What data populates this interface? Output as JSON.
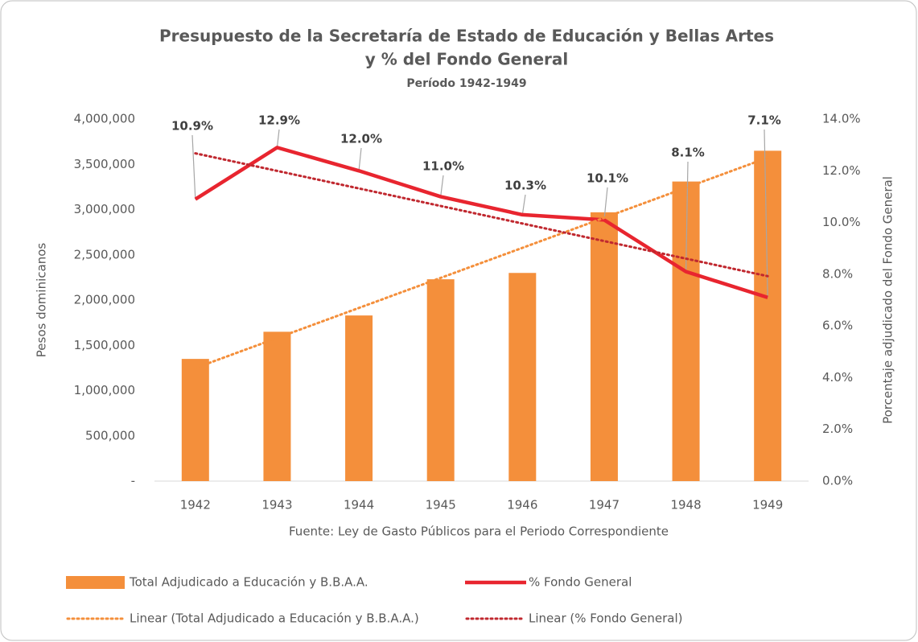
{
  "chart_data": {
    "type": "bar-line",
    "title": "Presupuesto de la Secretaría de Estado de Educación  y Bellas Artes",
    "subtitle": "y % del Fondo General",
    "period": "Período 1942-1949",
    "ylabel": "Pesos dominicanos",
    "y2label": "Porcentaje adjudicado del Fondo General",
    "note": "Fuente: Ley de Gasto Públicos para el Periodo Correspondiente",
    "categories": [
      "1942",
      "1943",
      "1944",
      "1945",
      "1946",
      "1947",
      "1948",
      "1949"
    ],
    "series": [
      {
        "name": "Total Adjudicado a Educación y B.B.A.A.",
        "type": "bar",
        "color": "#f48f3b",
        "values": [
          1350000,
          1650000,
          1830000,
          2230000,
          2300000,
          2970000,
          3310000,
          3650000
        ],
        "trendline": {
          "name": "Linear (Total Adjudicado a Educación y B.B.A.A.)",
          "color": "#f48f3b"
        }
      },
      {
        "name": "% Fondo General",
        "type": "line",
        "axis": "y2",
        "color": "#e8252f",
        "values": [
          10.9,
          12.9,
          12.0,
          11.0,
          10.3,
          10.1,
          8.1,
          7.1
        ],
        "value_labels": [
          "10.9%",
          "12.9%",
          "12.0%",
          "11.0%",
          "10.3%",
          "10.1%",
          "8.1%",
          "7.1%"
        ],
        "trendline": {
          "name": "Linear (% Fondo General)",
          "color": "#c0282f"
        }
      }
    ],
    "ylim": [
      0,
      4000000
    ],
    "yticks": [
      {
        "value": 0,
        "label": "-"
      },
      {
        "value": 500000,
        "label": "500,000"
      },
      {
        "value": 1000000,
        "label": "1,000,000"
      },
      {
        "value": 1500000,
        "label": "1,500,000"
      },
      {
        "value": 2000000,
        "label": "2,000,000"
      },
      {
        "value": 2500000,
        "label": "2,500,000"
      },
      {
        "value": 3000000,
        "label": "3,000,000"
      },
      {
        "value": 3500000,
        "label": "3,500,000"
      },
      {
        "value": 4000000,
        "label": "4,000,000"
      }
    ],
    "y2lim": [
      0,
      14
    ],
    "y2ticks": [
      {
        "value": 0,
        "label": "0.0%"
      },
      {
        "value": 2,
        "label": "2.0%"
      },
      {
        "value": 4,
        "label": "4.0%"
      },
      {
        "value": 6,
        "label": "6.0%"
      },
      {
        "value": 8,
        "label": "8.0%"
      },
      {
        "value": 10,
        "label": "10.0%"
      },
      {
        "value": 12,
        "label": "12.0%"
      },
      {
        "value": 14,
        "label": "14.0%"
      }
    ],
    "grid": false,
    "legend": "bottom"
  }
}
